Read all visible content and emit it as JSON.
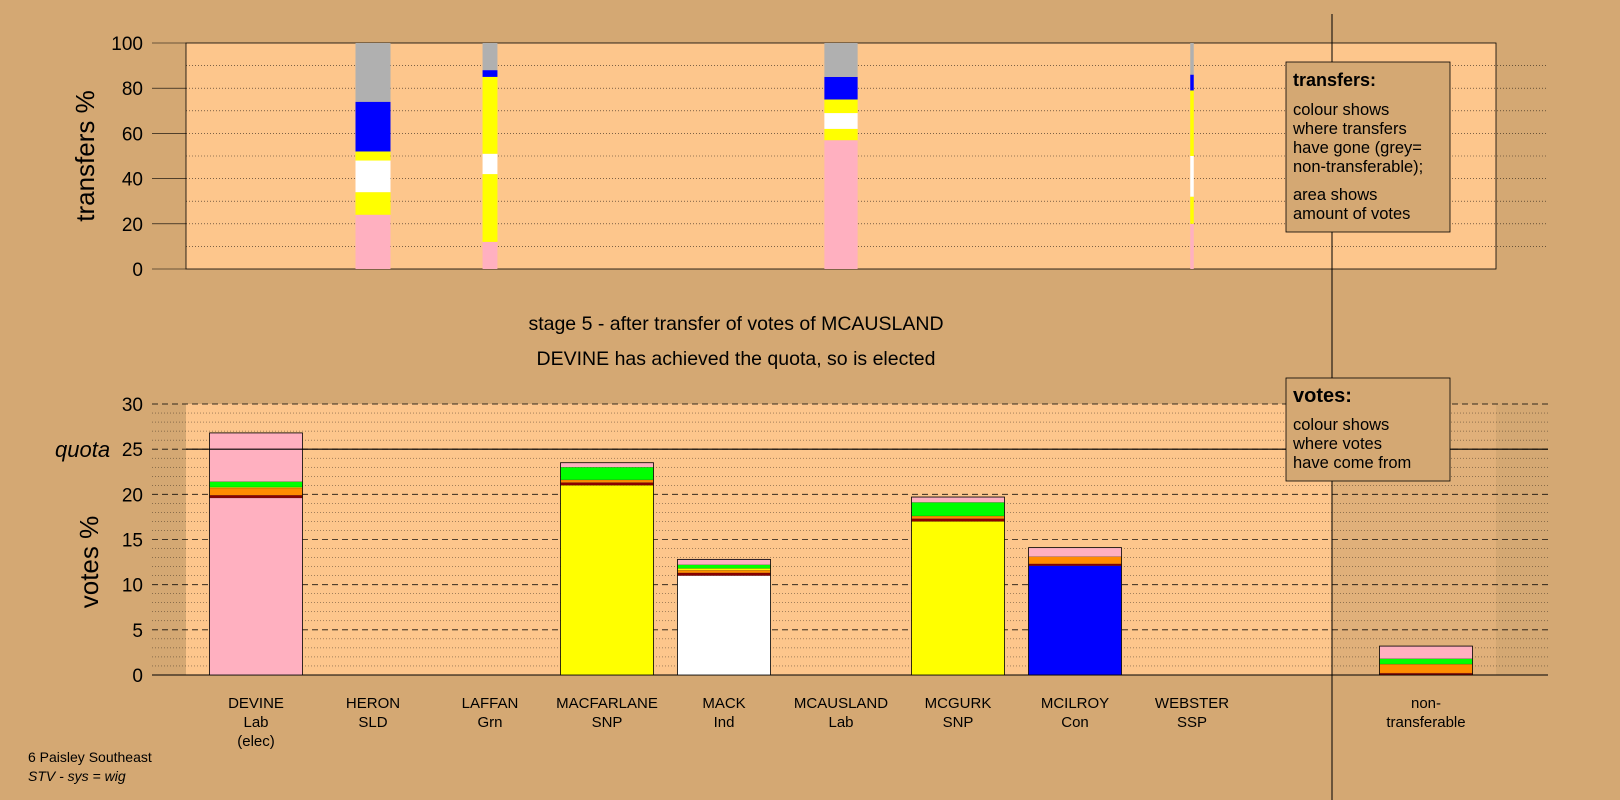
{
  "chart_data": [
    {
      "type": "bar",
      "stacked": true,
      "panel": "transfers",
      "ylabel": "transfers %",
      "ylim": [
        0,
        100
      ],
      "yticks": [
        0,
        20,
        40,
        60,
        80,
        100
      ],
      "grid": true,
      "columns": [
        {
          "candidate": "HERON",
          "width_share": 0.4,
          "segments": [
            {
              "color": "#ffb0c0",
              "value": 24
            },
            {
              "color": "#ffff00",
              "value": 10
            },
            {
              "color": "#ffffff",
              "value": 14
            },
            {
              "color": "#ffff00",
              "value": 4
            },
            {
              "color": "#0000ff",
              "value": 22
            },
            {
              "color": "#b0b0b0",
              "value": 26
            }
          ]
        },
        {
          "candidate": "LAFFAN",
          "width_share": 0.17,
          "segments": [
            {
              "color": "#ffb0c0",
              "value": 12
            },
            {
              "color": "#ffff00",
              "value": 30
            },
            {
              "color": "#ffffff",
              "value": 9
            },
            {
              "color": "#ffff00",
              "value": 34
            },
            {
              "color": "#0000ff",
              "value": 3
            },
            {
              "color": "#b0b0b0",
              "value": 12
            }
          ]
        },
        {
          "candidate": "MCAUSLAND",
          "width_share": 0.38,
          "segments": [
            {
              "color": "#ffb0c0",
              "value": 57
            },
            {
              "color": "#ffff00",
              "value": 5
            },
            {
              "color": "#ffffff",
              "value": 7
            },
            {
              "color": "#ffff00",
              "value": 6
            },
            {
              "color": "#0000ff",
              "value": 10
            },
            {
              "color": "#b0b0b0",
              "value": 15
            }
          ]
        },
        {
          "candidate": "WEBSTER",
          "width_share": 0.04,
          "segments": [
            {
              "color": "#ffb0c0",
              "value": 20
            },
            {
              "color": "#ffff00",
              "value": 12
            },
            {
              "color": "#ffffff",
              "value": 18
            },
            {
              "color": "#ffff00",
              "value": 29
            },
            {
              "color": "#0000ff",
              "value": 7
            },
            {
              "color": "#b0b0b0",
              "value": 14
            }
          ]
        }
      ]
    },
    {
      "type": "bar",
      "stacked": true,
      "panel": "votes",
      "ylabel": "votes %",
      "ylim": [
        0,
        30
      ],
      "yticks": [
        0,
        5,
        10,
        15,
        20,
        25,
        30
      ],
      "quota": 25,
      "quota_label": "quota",
      "grid": true,
      "categories": [
        "DEVINE|Lab|(elec)",
        "HERON|SLD",
        "LAFFAN|Grn",
        "MACFARLANE|SNP",
        "MACK|Ind",
        "MCAUSLAND|Lab",
        "MCGURK|SNP",
        "MCILROY|Con",
        "WEBSTER|SSP",
        "non-|transferable"
      ],
      "bars": [
        {
          "segments": [
            {
              "color": "#ffb0c0",
              "value": 19.6
            },
            {
              "color": "#8b0000",
              "value": 0.3
            },
            {
              "color": "#ff8c00",
              "value": 0.8
            },
            {
              "color": "#ffff00",
              "value": 0.1
            },
            {
              "color": "#00ff00",
              "value": 0.6
            },
            {
              "color": "#ffb0c0",
              "value": 5.4
            }
          ]
        },
        {
          "segments": []
        },
        {
          "segments": []
        },
        {
          "segments": [
            {
              "color": "#ffff00",
              "value": 21.0
            },
            {
              "color": "#8b0000",
              "value": 0.3
            },
            {
              "color": "#ff8c00",
              "value": 0.3
            },
            {
              "color": "#00ff00",
              "value": 1.4
            },
            {
              "color": "#ffb0c0",
              "value": 0.5
            }
          ]
        },
        {
          "segments": [
            {
              "color": "#ffffff",
              "value": 11.0
            },
            {
              "color": "#8b0000",
              "value": 0.3
            },
            {
              "color": "#ff8c00",
              "value": 0.3
            },
            {
              "color": "#ffff00",
              "value": 0.2
            },
            {
              "color": "#00ff00",
              "value": 0.4
            },
            {
              "color": "#ffb0c0",
              "value": 0.6
            }
          ]
        },
        {
          "segments": []
        },
        {
          "segments": [
            {
              "color": "#ffff00",
              "value": 17.0
            },
            {
              "color": "#8b0000",
              "value": 0.3
            },
            {
              "color": "#ff8c00",
              "value": 0.3
            },
            {
              "color": "#00ff00",
              "value": 1.5
            },
            {
              "color": "#ffb0c0",
              "value": 0.6
            }
          ]
        },
        {
          "segments": [
            {
              "color": "#0000ff",
              "value": 12.1
            },
            {
              "color": "#8b0000",
              "value": 0.2
            },
            {
              "color": "#ff8c00",
              "value": 0.8
            },
            {
              "color": "#ffb0c0",
              "value": 1.0
            }
          ]
        },
        {
          "segments": []
        },
        {
          "segments": [
            {
              "color": "#8b0000",
              "value": 0.2
            },
            {
              "color": "#ff8c00",
              "value": 1.0
            },
            {
              "color": "#00ff00",
              "value": 0.6
            },
            {
              "color": "#ffb0c0",
              "value": 1.4
            }
          ]
        }
      ]
    }
  ],
  "stage_line1": "stage 5 - after transfer of votes of MCAUSLAND",
  "stage_line2": "DEVINE has achieved the quota, so is elected",
  "legend_transfers": {
    "title": "transfers:",
    "lines": [
      "colour shows",
      "where transfers",
      "have gone (grey=",
      "non-transferable);",
      "area shows",
      "amount of votes"
    ]
  },
  "legend_votes": {
    "title": "votes:",
    "lines": [
      "colour shows",
      "where votes",
      "have come from"
    ]
  },
  "footer": {
    "line1": "6 Paisley Southeast",
    "line2": "STV - sys = wig"
  },
  "colors": {
    "background": "#d4a873",
    "plot_bg": "#fdc68c"
  }
}
